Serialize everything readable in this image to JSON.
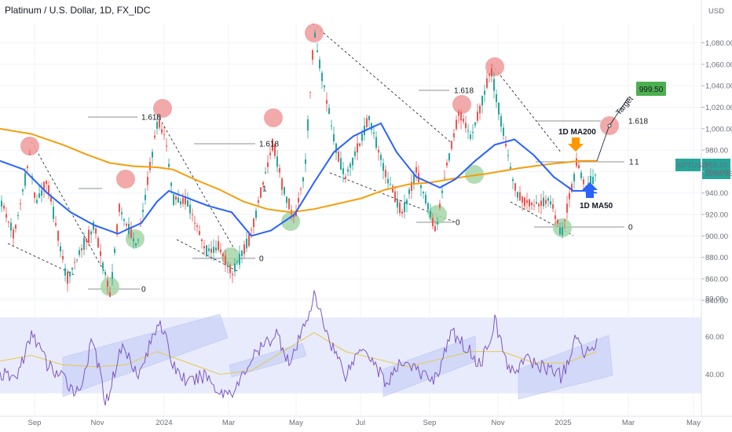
{
  "header": {
    "title": "Platinum / U.S. Dollar, 1D, FX_IDC",
    "currency": "USD"
  },
  "price_tag": {
    "symbol": "XPTUSD",
    "price": "958.19",
    "countdown": "11:45:36"
  },
  "colors": {
    "up_candle": "#26a69a",
    "down_candle": "#ef5350",
    "ma50": "#2962ff",
    "ma200": "#f59e0b",
    "rsi": "#7e57c2",
    "rsi_ma": "#e6c84a",
    "top_circle": "#ef9a9a",
    "bottom_circle": "#a5d6a7",
    "target_box": "#4caf50",
    "arrow_up": "#2962ff",
    "arrow_down": "#ff9800",
    "channel": "#b8c0f4",
    "rsi_band": "#e8ebfc"
  },
  "annotations": {
    "fib_high": "1.618",
    "fib_one": "1",
    "fib_zero": "0",
    "ma200_label": "1D MA200",
    "ma50_label": "1D MA50",
    "target_word": "Target",
    "target_value": "999.50"
  },
  "chart_data": [
    {
      "type": "line",
      "title": "Platinum / U.S. Dollar, 1D, FX_IDC",
      "x_ticks": [
        "Sep",
        "Nov",
        "2024",
        "Mar",
        "May",
        "Jul",
        "Sep",
        "Nov",
        "2025",
        "Mar",
        "May"
      ],
      "y_ticks": [
        "1,080.00",
        "1,060.00",
        "1,040.00",
        "1,020.00",
        "1,000.00",
        "980.00",
        "960.00",
        "940.00",
        "920.00",
        "900.00",
        "880.00",
        "860.00",
        "840.00"
      ],
      "ylim": [
        827,
        1098
      ],
      "series": [
        {
          "name": "Price",
          "values": [
            [
              0,
              935
            ],
            [
              18,
              900
            ],
            [
              38,
              975
            ],
            [
              45,
              930
            ],
            [
              60,
              950
            ],
            [
              85,
              860
            ],
            [
              95,
              875
            ],
            [
              120,
              910
            ],
            [
              140,
              845
            ],
            [
              152,
              925
            ],
            [
              175,
              890
            ],
            [
              200,
              1005
            ],
            [
              210,
              995
            ],
            [
              220,
              935
            ],
            [
              240,
              930
            ],
            [
              262,
              885
            ],
            [
              278,
              890
            ],
            [
              296,
              865
            ],
            [
              318,
              898
            ],
            [
              348,
              988
            ],
            [
              360,
              945
            ],
            [
              375,
              915
            ],
            [
              388,
              960
            ],
            [
              400,
              1090
            ],
            [
              415,
              1030
            ],
            [
              430,
              975
            ],
            [
              440,
              955
            ],
            [
              460,
              990
            ],
            [
              470,
              1010
            ],
            [
              490,
              960
            ],
            [
              512,
              920
            ],
            [
              530,
              960
            ],
            [
              555,
              905
            ],
            [
              570,
              970
            ],
            [
              585,
              1015
            ],
            [
              600,
              990
            ],
            [
              625,
              1055
            ],
            [
              640,
              1000
            ],
            [
              655,
              945
            ],
            [
              668,
              930
            ],
            [
              690,
              930
            ],
            [
              700,
              935
            ],
            [
              715,
              900
            ],
            [
              735,
              970
            ],
            [
              745,
              945
            ],
            [
              760,
              958
            ]
          ]
        },
        {
          "name": "1D MA50",
          "values": [
            [
              0,
              970
            ],
            [
              30,
              962
            ],
            [
              60,
              940
            ],
            [
              90,
              922
            ],
            [
              120,
              910
            ],
            [
              150,
              902
            ],
            [
              180,
              912
            ],
            [
              200,
              932
            ],
            [
              215,
              942
            ],
            [
              240,
              935
            ],
            [
              265,
              928
            ],
            [
              295,
              922
            ],
            [
              320,
              900
            ],
            [
              345,
              905
            ],
            [
              375,
              920
            ],
            [
              400,
              950
            ],
            [
              425,
              978
            ],
            [
              450,
              993
            ],
            [
              470,
              1000
            ],
            [
              485,
              1005
            ],
            [
              505,
              978
            ],
            [
              530,
              955
            ],
            [
              560,
              945
            ],
            [
              580,
              953
            ],
            [
              605,
              970
            ],
            [
              630,
              985
            ],
            [
              655,
              990
            ],
            [
              680,
              975
            ],
            [
              705,
              955
            ],
            [
              730,
              942
            ],
            [
              745,
              942
            ],
            [
              760,
              940
            ]
          ]
        },
        {
          "name": "1D MA200",
          "values": [
            [
              0,
              1000
            ],
            [
              40,
              995
            ],
            [
              80,
              985
            ],
            [
              110,
              976
            ],
            [
              140,
              968
            ],
            [
              170,
              965
            ],
            [
              200,
              964
            ],
            [
              220,
              962
            ],
            [
              250,
              952
            ],
            [
              280,
              943
            ],
            [
              310,
              932
            ],
            [
              340,
              925
            ],
            [
              370,
              922
            ],
            [
              400,
              925
            ],
            [
              430,
              930
            ],
            [
              460,
              935
            ],
            [
              490,
              943
            ],
            [
              520,
              948
            ],
            [
              550,
              950
            ],
            [
              590,
              955
            ],
            [
              620,
              958
            ],
            [
              660,
              963
            ],
            [
              700,
              967
            ],
            [
              740,
              970
            ],
            [
              760,
              970
            ]
          ]
        }
      ]
    },
    {
      "type": "line",
      "title": "",
      "y_ticks": [
        "80.00",
        "60.00",
        "40.00"
      ],
      "ylim": [
        22,
        80
      ],
      "series": [
        {
          "name": "RSI",
          "values": [
            [
              0,
              40
            ],
            [
              20,
              38
            ],
            [
              42,
              62
            ],
            [
              60,
              45
            ],
            [
              80,
              38
            ],
            [
              100,
              30
            ],
            [
              118,
              58
            ],
            [
              135,
              25
            ],
            [
              155,
              55
            ],
            [
              178,
              40
            ],
            [
              203,
              70
            ],
            [
              220,
              45
            ],
            [
              240,
              35
            ],
            [
              262,
              40
            ],
            [
              280,
              30
            ],
            [
              300,
              32
            ],
            [
              320,
              48
            ],
            [
              352,
              62
            ],
            [
              370,
              45
            ],
            [
              400,
              81
            ],
            [
              420,
              58
            ],
            [
              440,
              40
            ],
            [
              462,
              56
            ],
            [
              478,
              45
            ],
            [
              492,
              35
            ],
            [
              515,
              48
            ],
            [
              535,
              40
            ],
            [
              555,
              38
            ],
            [
              575,
              62
            ],
            [
              592,
              55
            ],
            [
              612,
              45
            ],
            [
              630,
              68
            ],
            [
              650,
              40
            ],
            [
              668,
              48
            ],
            [
              690,
              44
            ],
            [
              708,
              42
            ],
            [
              715,
              38
            ],
            [
              735,
              60
            ],
            [
              745,
              50
            ],
            [
              760,
              59
            ]
          ]
        },
        {
          "name": "RSI MA",
          "values": [
            [
              0,
              47
            ],
            [
              40,
              50
            ],
            [
              80,
              45
            ],
            [
              120,
              44
            ],
            [
              160,
              45
            ],
            [
              200,
              52
            ],
            [
              240,
              46
            ],
            [
              280,
              40
            ],
            [
              320,
              42
            ],
            [
              360,
              52
            ],
            [
              400,
              62
            ],
            [
              440,
              52
            ],
            [
              480,
              48
            ],
            [
              520,
              44
            ],
            [
              560,
              48
            ],
            [
              600,
              52
            ],
            [
              640,
              52
            ],
            [
              680,
              46
            ],
            [
              720,
              46
            ],
            [
              760,
              52
            ]
          ]
        }
      ]
    }
  ]
}
